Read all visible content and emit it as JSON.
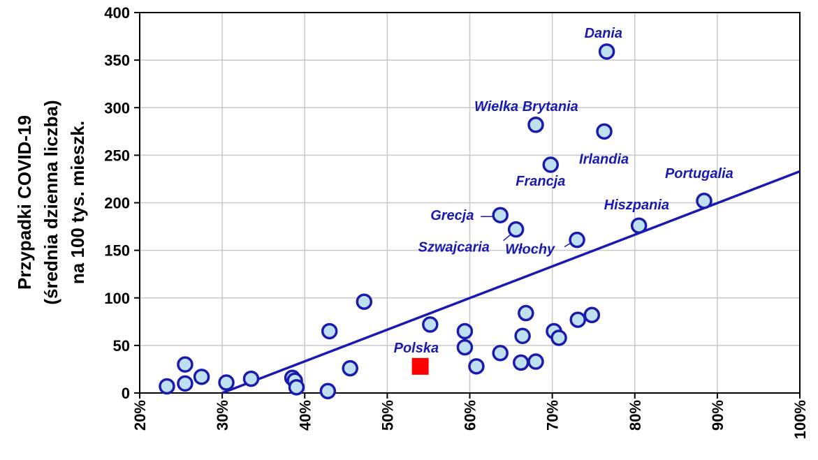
{
  "chart_data": {
    "type": "scatter",
    "xlim": [
      0.2,
      1.0
    ],
    "ylim": [
      0,
      400
    ],
    "x_ticks": [
      0.2,
      0.3,
      0.4,
      0.5,
      0.6,
      0.7,
      0.8,
      0.9,
      1.0
    ],
    "x_tick_labels": [
      "20%",
      "30%",
      "40%",
      "50%",
      "60%",
      "70%",
      "80%",
      "90%",
      "100%"
    ],
    "y_ticks": [
      0,
      50,
      100,
      150,
      200,
      250,
      300,
      350,
      400
    ],
    "y_tick_labels": [
      "0",
      "50",
      "100",
      "150",
      "200",
      "250",
      "300",
      "350",
      "400"
    ],
    "ylabel_lines": [
      "Przypadki COVID-19",
      "(średnia dzienna liczba)",
      "na 100 tys. mieszk."
    ],
    "grid": true,
    "trend_line": {
      "x": [
        0.3,
        1.0
      ],
      "y": [
        0,
        233
      ]
    },
    "highlight": {
      "label": "Polska",
      "x": 0.54,
      "y": 28,
      "color": "#ff0000"
    },
    "points": [
      {
        "x": 0.233,
        "y": 7,
        "label": ""
      },
      {
        "x": 0.255,
        "y": 10,
        "label": ""
      },
      {
        "x": 0.255,
        "y": 30,
        "label": ""
      },
      {
        "x": 0.275,
        "y": 17,
        "label": ""
      },
      {
        "x": 0.305,
        "y": 11,
        "label": ""
      },
      {
        "x": 0.335,
        "y": 15,
        "label": ""
      },
      {
        "x": 0.385,
        "y": 16,
        "label": ""
      },
      {
        "x": 0.388,
        "y": 13,
        "label": ""
      },
      {
        "x": 0.39,
        "y": 6,
        "label": ""
      },
      {
        "x": 0.428,
        "y": 2,
        "label": ""
      },
      {
        "x": 0.43,
        "y": 65,
        "label": ""
      },
      {
        "x": 0.455,
        "y": 26,
        "label": ""
      },
      {
        "x": 0.472,
        "y": 96,
        "label": ""
      },
      {
        "x": 0.552,
        "y": 72,
        "label": ""
      },
      {
        "x": 0.594,
        "y": 65,
        "label": ""
      },
      {
        "x": 0.594,
        "y": 48,
        "label": ""
      },
      {
        "x": 0.608,
        "y": 28,
        "label": ""
      },
      {
        "x": 0.637,
        "y": 42,
        "label": ""
      },
      {
        "x": 0.662,
        "y": 32,
        "label": ""
      },
      {
        "x": 0.664,
        "y": 60,
        "label": ""
      },
      {
        "x": 0.668,
        "y": 84,
        "label": ""
      },
      {
        "x": 0.68,
        "y": 33,
        "label": ""
      },
      {
        "x": 0.702,
        "y": 65,
        "label": ""
      },
      {
        "x": 0.708,
        "y": 58,
        "label": ""
      },
      {
        "x": 0.731,
        "y": 77,
        "label": ""
      },
      {
        "x": 0.748,
        "y": 82,
        "label": ""
      },
      {
        "x": 0.637,
        "y": 187,
        "label": "Grecja"
      },
      {
        "x": 0.656,
        "y": 172,
        "label": "Szwajcaria"
      },
      {
        "x": 0.73,
        "y": 161,
        "label": "Włochy"
      },
      {
        "x": 0.698,
        "y": 240,
        "label": "Francja"
      },
      {
        "x": 0.68,
        "y": 282,
        "label": "Wielka Brytania"
      },
      {
        "x": 0.763,
        "y": 275,
        "label": "Irlandia"
      },
      {
        "x": 0.766,
        "y": 359,
        "label": "Dania"
      },
      {
        "x": 0.805,
        "y": 176,
        "label": "Hiszpania"
      },
      {
        "x": 0.884,
        "y": 202,
        "label": "Portugalia"
      }
    ]
  },
  "colors": {
    "marker_fill": "#bfe0f0",
    "marker_stroke": "#1a1ab0",
    "line": "#1a1ab0",
    "label": "#1a1ab0",
    "grid": "#c8c8c8"
  }
}
